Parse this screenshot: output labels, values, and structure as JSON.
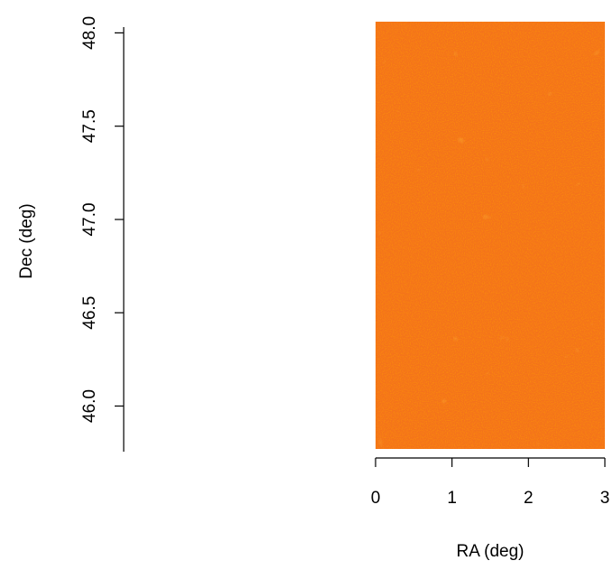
{
  "chart_data": {
    "type": "heatmap",
    "x_label": "RA (deg)",
    "y_label": "Dec (deg)",
    "xlim": [
      0,
      3
    ],
    "ylim": [
      45.77,
      48.06
    ],
    "xticks": [
      0,
      1,
      2,
      3
    ],
    "yticks": [
      {
        "value": 46,
        "label": "46.0"
      },
      46.5,
      {
        "value": 47,
        "label": "47.0"
      },
      47.5,
      {
        "value": 48,
        "label": "48.0"
      }
    ],
    "color": "#f4731a"
  }
}
